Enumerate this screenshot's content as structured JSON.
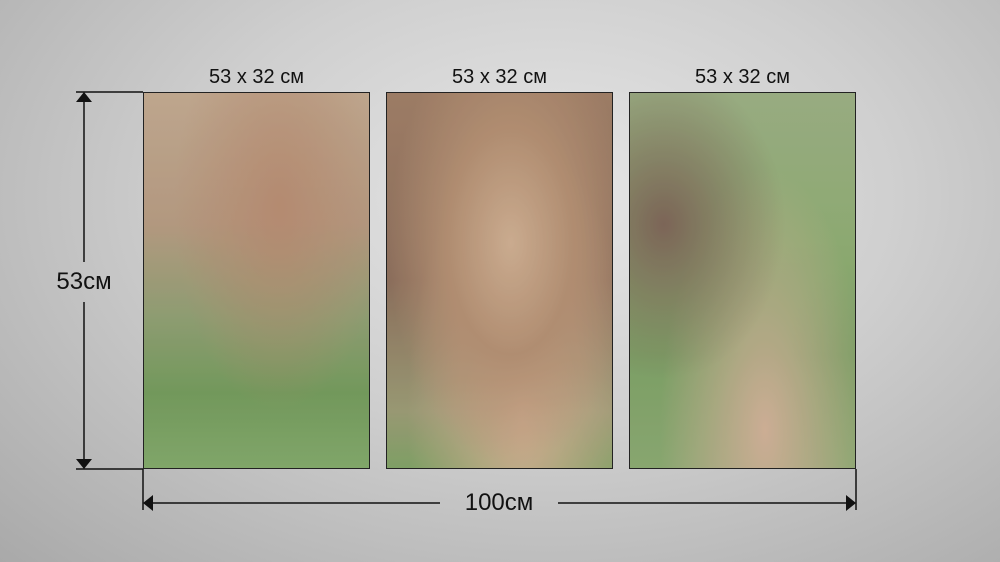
{
  "panels": [
    {
      "size_label": "53 x 32 см"
    },
    {
      "size_label": "53 x 32 см"
    },
    {
      "size_label": "53 x 32 см"
    }
  ],
  "dimensions": {
    "height_label": "53см",
    "width_label": "100см"
  },
  "colors": {
    "background": "#c8c8c8",
    "lines": "#111111"
  }
}
